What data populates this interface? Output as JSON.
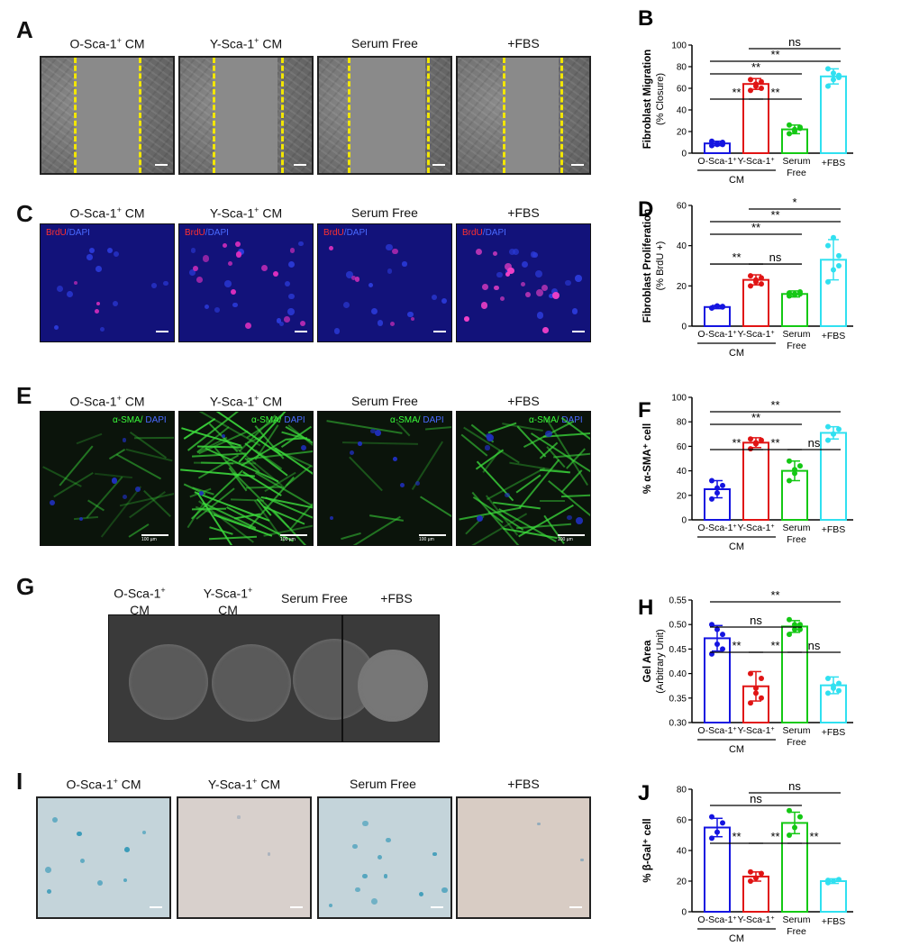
{
  "panels": {
    "A": {
      "letter": "A",
      "titles": [
        "O-Sca-1",
        "Y-Sca-1",
        "Serum Free",
        "+FBS"
      ],
      "cm_suffix": [
        "CM",
        "CM",
        "",
        ""
      ]
    },
    "C": {
      "letter": "C",
      "titles": [
        "O-Sca-1",
        "Y-Sca-1",
        "Serum Free",
        "+FBS"
      ],
      "cm_suffix": [
        "CM",
        "CM",
        "",
        ""
      ],
      "stain_red": "BrdU",
      "stain_blue": "/DAPI"
    },
    "E": {
      "letter": "E",
      "titles": [
        "O-Sca-1",
        "Y-Sca-1",
        "Serum Free",
        "+FBS"
      ],
      "cm_suffix": [
        "CM",
        "CM",
        "",
        ""
      ],
      "stain_green": "α-SMA/",
      "stain_blue": " DAPI",
      "scale_text": "100 µm"
    },
    "G": {
      "letter": "G",
      "titles": [
        "O-Sca-1",
        "Y-Sca-1",
        "Serum Free",
        "+FBS"
      ],
      "cm_suffix": [
        "CM",
        "CM",
        "",
        ""
      ]
    },
    "I": {
      "letter": "I",
      "titles": [
        "O-Sca-1",
        "Y-Sca-1",
        "Serum Free",
        "+FBS"
      ],
      "cm_suffix": [
        "CM",
        "CM",
        "",
        ""
      ]
    }
  },
  "colors": {
    "O": "#1414e0",
    "Y": "#e01414",
    "SF": "#14c814",
    "FBS": "#30e0f0"
  },
  "chart_data": [
    {
      "id": "B",
      "letter": "B",
      "type": "bar",
      "ylabel": "Fibroblast Migration",
      "ylabel2": "(% Closure)",
      "ylim": [
        0,
        100
      ],
      "yticks": [
        0,
        20,
        40,
        60,
        80,
        100
      ],
      "categories": [
        "O-Sca-1+",
        "Y-Sca-1+",
        "Serum Free",
        "+FBS"
      ],
      "values": [
        9,
        64,
        22,
        71
      ],
      "errors": [
        2,
        5,
        4,
        7
      ],
      "points": [
        [
          7,
          8,
          10,
          11,
          9,
          8
        ],
        [
          58,
          62,
          66,
          68,
          64,
          60
        ],
        [
          18,
          20,
          24,
          26,
          22,
          23
        ],
        [
          62,
          68,
          72,
          78,
          74,
          70
        ]
      ],
      "sig": [
        {
          "from": 0,
          "to": 1,
          "label": "**"
        },
        {
          "from": 1,
          "to": 2,
          "label": "**"
        },
        {
          "from": 0,
          "to": 2,
          "label": "**"
        },
        {
          "from": 0,
          "to": 3,
          "label": "**"
        },
        {
          "from": 1,
          "to": 3,
          "label": "ns"
        }
      ],
      "group_label": "CM"
    },
    {
      "id": "D",
      "letter": "D",
      "type": "bar",
      "ylabel": "Fibroblast Proliferation",
      "ylabel2": "(% BrdU +)",
      "ylim": [
        0,
        60
      ],
      "yticks": [
        0,
        20,
        40,
        60
      ],
      "categories": [
        "O-Sca-1+",
        "Y-Sca-1+",
        "Serum Free",
        "+FBS"
      ],
      "values": [
        9.5,
        23,
        16,
        33
      ],
      "errors": [
        0.8,
        2.5,
        1.5,
        10
      ],
      "points": [
        [
          9,
          10,
          9.5,
          9,
          10,
          9.8
        ],
        [
          20,
          22,
          24,
          25,
          23,
          21
        ],
        [
          15,
          16,
          17,
          16.5,
          15.5,
          16
        ],
        [
          22,
          28,
          35,
          40,
          44,
          30
        ]
      ],
      "sig": [
        {
          "from": 0,
          "to": 1,
          "label": "**"
        },
        {
          "from": 1,
          "to": 2,
          "label": "ns"
        },
        {
          "from": 0,
          "to": 2,
          "label": "**"
        },
        {
          "from": 0,
          "to": 3,
          "label": "**"
        },
        {
          "from": 1,
          "to": 3,
          "label": "*"
        }
      ],
      "group_label": "CM"
    },
    {
      "id": "F",
      "letter": "F",
      "type": "bar",
      "ylabel": "% α-SMA⁺ cell",
      "ylabel2": "",
      "ylim": [
        0,
        100
      ],
      "yticks": [
        0,
        20,
        40,
        60,
        80,
        100
      ],
      "categories": [
        "O-Sca-1+",
        "Y-Sca-1+",
        "Serum Free",
        "+FBS"
      ],
      "values": [
        25,
        63,
        40,
        71
      ],
      "errors": [
        7,
        4,
        8,
        5
      ],
      "points": [
        [
          17,
          22,
          28,
          32,
          26
        ],
        [
          58,
          62,
          65,
          66,
          63
        ],
        [
          32,
          38,
          44,
          48,
          41
        ],
        [
          65,
          70,
          74,
          76,
          70
        ]
      ],
      "sig": [
        {
          "from": 0,
          "to": 1,
          "label": "**"
        },
        {
          "from": 1,
          "to": 2,
          "label": "**"
        },
        {
          "from": 0,
          "to": 2,
          "label": "**"
        },
        {
          "from": 0,
          "to": 3,
          "label": "**"
        },
        {
          "from": 2,
          "to": 3,
          "label": "ns"
        }
      ],
      "group_label": "CM"
    },
    {
      "id": "H",
      "letter": "H",
      "type": "bar",
      "ylabel": "Gel Area",
      "ylabel2": "(Arbitrary Unit)",
      "ylim": [
        0.3,
        0.55
      ],
      "yticks": [
        0.3,
        0.35,
        0.4,
        0.45,
        0.5,
        0.55
      ],
      "categories": [
        "O-Sca-1+",
        "Y-Sca-1+",
        "Serum Free",
        "+FBS"
      ],
      "values": [
        0.472,
        0.374,
        0.496,
        0.376
      ],
      "errors": [
        0.026,
        0.03,
        0.012,
        0.017
      ],
      "points": [
        [
          0.44,
          0.46,
          0.48,
          0.5,
          0.49,
          0.45
        ],
        [
          0.34,
          0.36,
          0.39,
          0.4,
          0.37,
          0.35
        ],
        [
          0.48,
          0.49,
          0.5,
          0.51,
          0.5,
          0.49
        ],
        [
          0.36,
          0.37,
          0.38,
          0.39,
          0.375,
          0.365
        ]
      ],
      "sig": [
        {
          "from": 0,
          "to": 1,
          "label": "**"
        },
        {
          "from": 1,
          "to": 2,
          "label": "**"
        },
        {
          "from": 0,
          "to": 2,
          "label": "ns"
        },
        {
          "from": 2,
          "to": 3,
          "label": "ns"
        },
        {
          "from": 0,
          "to": 3,
          "label": "**"
        }
      ],
      "group_label": "CM"
    },
    {
      "id": "J",
      "letter": "J",
      "type": "bar",
      "ylabel": "% β-Gal⁺ cell",
      "ylabel2": "",
      "ylim": [
        0,
        80
      ],
      "yticks": [
        0,
        20,
        40,
        60,
        80
      ],
      "categories": [
        "O-Sca-1+",
        "Y-Sca-1+",
        "Serum Free",
        "+FBS"
      ],
      "values": [
        55,
        23,
        58,
        20
      ],
      "errors": [
        6,
        3,
        7,
        1.5
      ],
      "points": [
        [
          48,
          52,
          58,
          62
        ],
        [
          20,
          22,
          25,
          26
        ],
        [
          50,
          55,
          62,
          66
        ],
        [
          19,
          20,
          21,
          20.5
        ]
      ],
      "sig": [
        {
          "from": 0,
          "to": 1,
          "label": "**"
        },
        {
          "from": 1,
          "to": 2,
          "label": "**"
        },
        {
          "from": 2,
          "to": 3,
          "label": "**"
        },
        {
          "from": 0,
          "to": 2,
          "label": "ns"
        },
        {
          "from": 1,
          "to": 3,
          "label": "ns"
        }
      ],
      "group_label": "CM"
    }
  ]
}
